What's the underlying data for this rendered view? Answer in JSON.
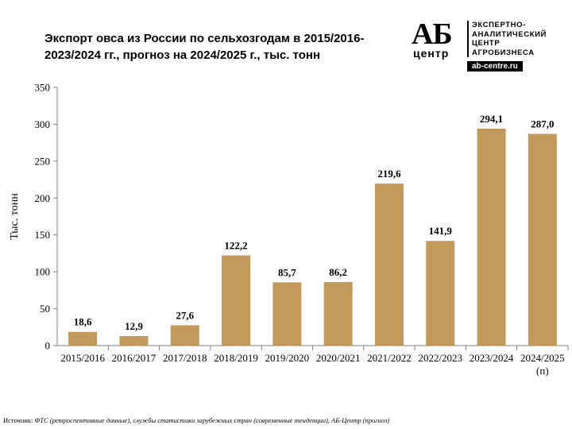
{
  "header": {
    "title_line1": "Экспорт овса из России по сельхозгодам в 2015/2016-",
    "title_line2": "2023/2024 гг., прогноз на 2024/2025 г., тыс. тонн"
  },
  "logo": {
    "mark": "АБ",
    "center": "центр",
    "lines": [
      "ЭКСПЕРТНО-",
      "АНАЛИТИЧЕСКИЙ",
      "ЦЕНТР",
      "АГРОБИЗНЕСА"
    ],
    "url": "ab-centre.ru"
  },
  "colors": {
    "bar": "#c19a5b",
    "axis": "#7f7f7f",
    "gridline": "#d9d9d9"
  },
  "chart_data": {
    "type": "bar",
    "title": "Экспорт овса из России по сельхозгодам в 2015/2016-2023/2024 гг., прогноз на 2024/2025 г., тыс. тонн",
    "ylabel": "Тыс. тонн",
    "xlabel": "",
    "categories": [
      "2015/2016",
      "2016/2017",
      "2017/2018",
      "2018/2019",
      "2019/2020",
      "2020/2021",
      "2021/2022",
      "2022/2023",
      "2023/2024",
      "2024/2025"
    ],
    "category_notes": [
      "",
      "",
      "",
      "",
      "",
      "",
      "",
      "",
      "",
      "(п)"
    ],
    "values": [
      18.6,
      12.9,
      27.6,
      122.2,
      85.7,
      86.2,
      219.6,
      141.9,
      294.1,
      287.0
    ],
    "value_labels": [
      "18,6",
      "12,9",
      "27,6",
      "122,2",
      "85,7",
      "86,2",
      "219,6",
      "141,9",
      "294,1",
      "287,0"
    ],
    "ylim": [
      0,
      350
    ],
    "yticks": [
      0,
      50,
      100,
      150,
      200,
      250,
      300,
      350
    ],
    "grid": false,
    "legend": "none"
  },
  "footer": {
    "source_prefix": "Источник: ",
    "source_text": "ФТС (ретроспективные данные), службы статистики зарубежных стран (современные тенденции), АБ-Центр (прогноз)"
  }
}
